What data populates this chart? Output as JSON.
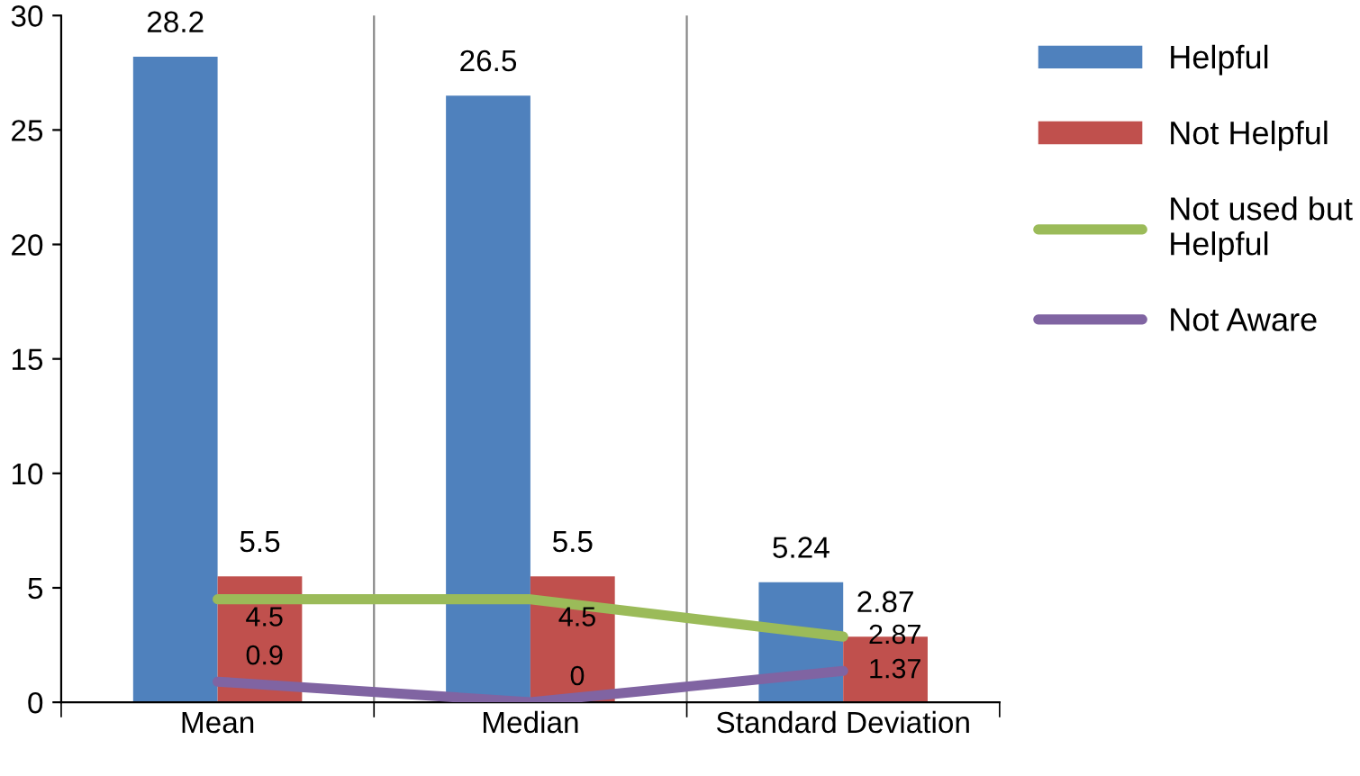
{
  "chart_data": {
    "type": "bar",
    "categories": [
      "Mean",
      "Median",
      "Standard Deviation"
    ],
    "series": [
      {
        "name": "Helpful",
        "color": "#4f81bd",
        "values": [
          28.2,
          26.5,
          5.24
        ]
      },
      {
        "name": "Not Helpful",
        "color": "#c0504d",
        "values": [
          5.5,
          5.5,
          2.87
        ]
      },
      {
        "name": "Not used but Helpful",
        "type": "line",
        "color": "#9bbb59",
        "values": [
          4.5,
          4.5,
          2.87
        ]
      },
      {
        "name": "Not Aware",
        "type": "line",
        "color": "#8064a2",
        "values": [
          0.9,
          0,
          1.37
        ]
      }
    ],
    "ylim": [
      0,
      30
    ],
    "yticks": [
      0,
      5,
      10,
      15,
      20,
      25,
      30
    ],
    "grid": "x",
    "legend": "right",
    "data_labels": true,
    "marker": "none"
  }
}
